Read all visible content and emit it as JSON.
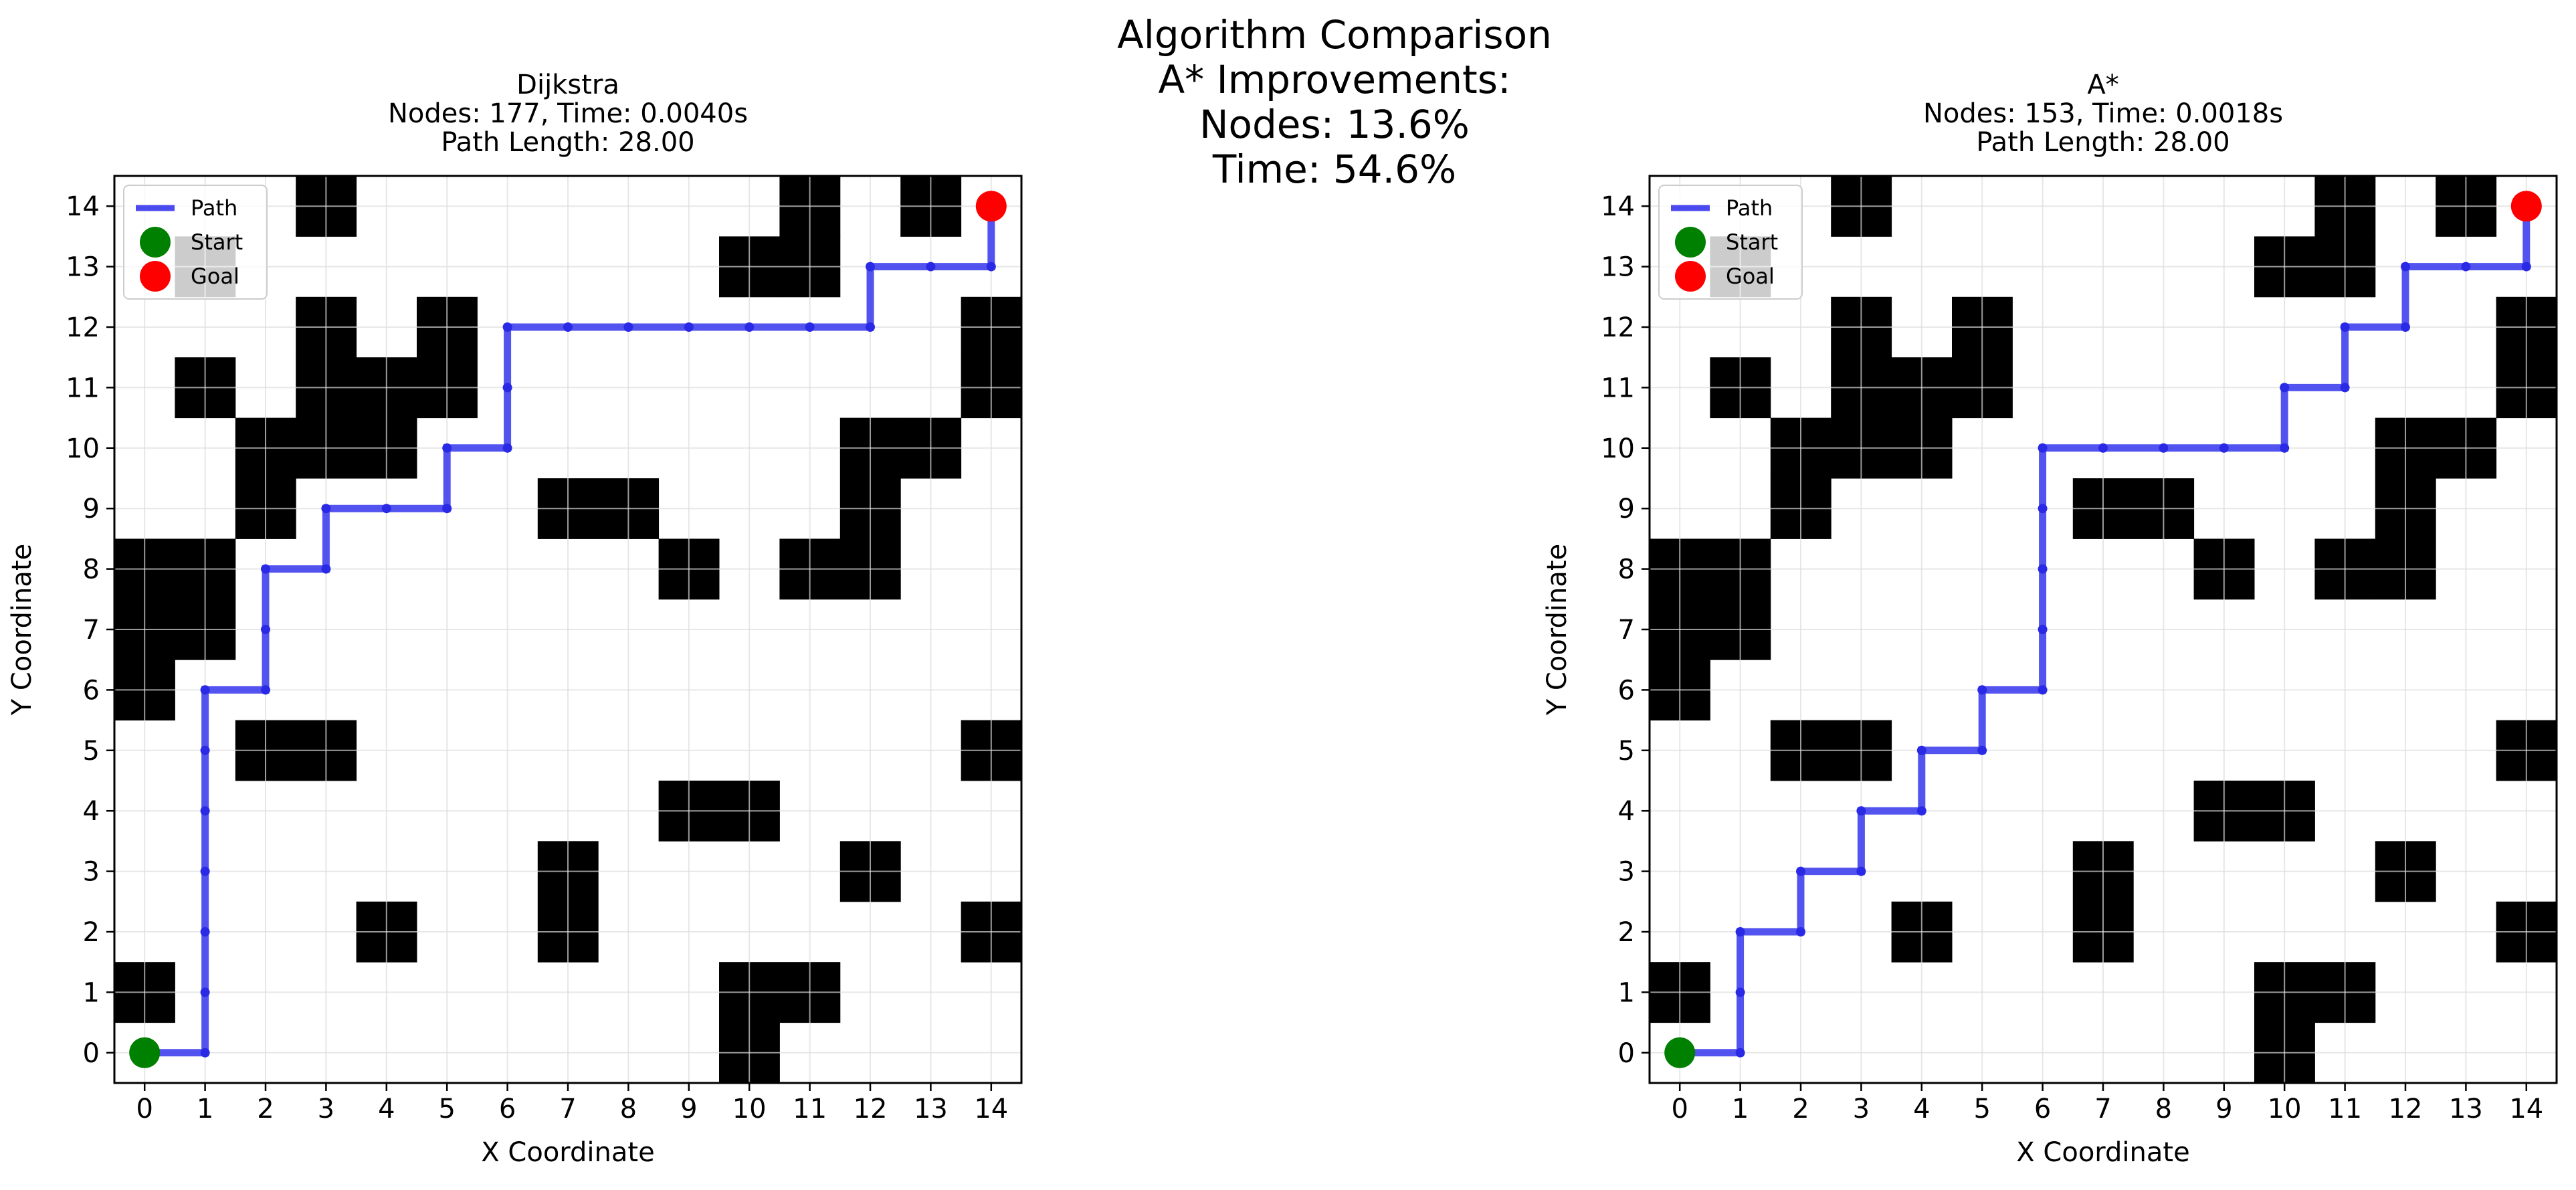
{
  "figure": {
    "title_lines": [
      "Algorithm Comparison",
      "A* Improvements:",
      "Nodes: 13.6%",
      "Time: 54.6%"
    ]
  },
  "colors": {
    "obstacle": "#000000",
    "grid": "#dddddd",
    "path": "#4a4aee",
    "start": "#008000",
    "goal": "#ff0000",
    "legend_border": "#cccccc"
  },
  "chart_data": [
    {
      "type": "grid-path",
      "title_lines": [
        "Dijkstra",
        "Nodes: 177, Time: 0.0040s",
        "Path Length: 28.00"
      ],
      "xlabel": "X Coordinate",
      "ylabel": "Y Coordinate",
      "xlim": [
        -0.5,
        14.5
      ],
      "ylim": [
        -0.5,
        14.5
      ],
      "xticks": [
        "0",
        "1",
        "2",
        "3",
        "4",
        "5",
        "6",
        "7",
        "8",
        "9",
        "10",
        "11",
        "12",
        "13",
        "14"
      ],
      "yticks": [
        "0",
        "1",
        "2",
        "3",
        "4",
        "5",
        "6",
        "7",
        "8",
        "9",
        "10",
        "11",
        "12",
        "13",
        "14"
      ],
      "grid": true,
      "legend": {
        "placement": "top-left",
        "entries": [
          "Path",
          "Start",
          "Goal"
        ]
      },
      "start": [
        0,
        0
      ],
      "goal": [
        14,
        14
      ],
      "obstacles": [
        [
          10,
          0
        ],
        [
          0,
          1
        ],
        [
          10,
          1
        ],
        [
          11,
          1
        ],
        [
          4,
          2
        ],
        [
          7,
          2
        ],
        [
          14,
          2
        ],
        [
          7,
          3
        ],
        [
          12,
          3
        ],
        [
          9,
          4
        ],
        [
          10,
          4
        ],
        [
          2,
          5
        ],
        [
          3,
          5
        ],
        [
          14,
          5
        ],
        [
          0,
          6
        ],
        [
          0,
          7
        ],
        [
          1,
          7
        ],
        [
          0,
          8
        ],
        [
          1,
          8
        ],
        [
          9,
          8
        ],
        [
          11,
          8
        ],
        [
          12,
          8
        ],
        [
          2,
          9
        ],
        [
          7,
          9
        ],
        [
          8,
          9
        ],
        [
          12,
          9
        ],
        [
          2,
          10
        ],
        [
          3,
          10
        ],
        [
          4,
          10
        ],
        [
          12,
          10
        ],
        [
          13,
          10
        ],
        [
          1,
          11
        ],
        [
          3,
          11
        ],
        [
          4,
          11
        ],
        [
          5,
          11
        ],
        [
          14,
          11
        ],
        [
          3,
          12
        ],
        [
          5,
          12
        ],
        [
          14,
          12
        ],
        [
          10,
          13
        ],
        [
          11,
          13
        ],
        [
          1,
          13
        ],
        [
          3,
          14
        ],
        [
          11,
          14
        ],
        [
          13,
          14
        ]
      ],
      "path": [
        [
          0,
          0
        ],
        [
          1,
          0
        ],
        [
          1,
          1
        ],
        [
          1,
          2
        ],
        [
          1,
          3
        ],
        [
          1,
          4
        ],
        [
          1,
          5
        ],
        [
          1,
          6
        ],
        [
          2,
          6
        ],
        [
          2,
          7
        ],
        [
          2,
          8
        ],
        [
          3,
          8
        ],
        [
          3,
          9
        ],
        [
          4,
          9
        ],
        [
          5,
          9
        ],
        [
          5,
          10
        ],
        [
          6,
          10
        ],
        [
          6,
          11
        ],
        [
          6,
          12
        ],
        [
          7,
          12
        ],
        [
          8,
          12
        ],
        [
          9,
          12
        ],
        [
          10,
          12
        ],
        [
          11,
          12
        ],
        [
          12,
          12
        ],
        [
          12,
          13
        ],
        [
          13,
          13
        ],
        [
          14,
          13
        ],
        [
          14,
          14
        ]
      ]
    },
    {
      "type": "grid-path",
      "title_lines": [
        "A*",
        "Nodes: 153, Time: 0.0018s",
        "Path Length: 28.00"
      ],
      "xlabel": "X Coordinate",
      "ylabel": "Y Coordinate",
      "xlim": [
        -0.5,
        14.5
      ],
      "ylim": [
        -0.5,
        14.5
      ],
      "xticks": [
        "0",
        "1",
        "2",
        "3",
        "4",
        "5",
        "6",
        "7",
        "8",
        "9",
        "10",
        "11",
        "12",
        "13",
        "14"
      ],
      "yticks": [
        "0",
        "1",
        "2",
        "3",
        "4",
        "5",
        "6",
        "7",
        "8",
        "9",
        "10",
        "11",
        "12",
        "13",
        "14"
      ],
      "grid": true,
      "legend": {
        "placement": "top-left",
        "entries": [
          "Path",
          "Start",
          "Goal"
        ]
      },
      "start": [
        0,
        0
      ],
      "goal": [
        14,
        14
      ],
      "obstacles": [
        [
          10,
          0
        ],
        [
          0,
          1
        ],
        [
          10,
          1
        ],
        [
          11,
          1
        ],
        [
          4,
          2
        ],
        [
          7,
          2
        ],
        [
          14,
          2
        ],
        [
          7,
          3
        ],
        [
          12,
          3
        ],
        [
          9,
          4
        ],
        [
          10,
          4
        ],
        [
          2,
          5
        ],
        [
          3,
          5
        ],
        [
          14,
          5
        ],
        [
          0,
          6
        ],
        [
          0,
          7
        ],
        [
          1,
          7
        ],
        [
          0,
          8
        ],
        [
          1,
          8
        ],
        [
          9,
          8
        ],
        [
          11,
          8
        ],
        [
          12,
          8
        ],
        [
          2,
          9
        ],
        [
          7,
          9
        ],
        [
          8,
          9
        ],
        [
          12,
          9
        ],
        [
          2,
          10
        ],
        [
          3,
          10
        ],
        [
          4,
          10
        ],
        [
          12,
          10
        ],
        [
          13,
          10
        ],
        [
          1,
          11
        ],
        [
          3,
          11
        ],
        [
          4,
          11
        ],
        [
          5,
          11
        ],
        [
          14,
          11
        ],
        [
          3,
          12
        ],
        [
          5,
          12
        ],
        [
          14,
          12
        ],
        [
          10,
          13
        ],
        [
          11,
          13
        ],
        [
          1,
          13
        ],
        [
          3,
          14
        ],
        [
          11,
          14
        ],
        [
          13,
          14
        ]
      ],
      "path": [
        [
          0,
          0
        ],
        [
          1,
          0
        ],
        [
          1,
          1
        ],
        [
          1,
          2
        ],
        [
          2,
          2
        ],
        [
          2,
          3
        ],
        [
          3,
          3
        ],
        [
          3,
          4
        ],
        [
          4,
          4
        ],
        [
          4,
          5
        ],
        [
          5,
          5
        ],
        [
          5,
          6
        ],
        [
          6,
          6
        ],
        [
          6,
          7
        ],
        [
          6,
          8
        ],
        [
          6,
          9
        ],
        [
          6,
          10
        ],
        [
          7,
          10
        ],
        [
          8,
          10
        ],
        [
          9,
          10
        ],
        [
          10,
          10
        ],
        [
          10,
          11
        ],
        [
          11,
          11
        ],
        [
          11,
          12
        ],
        [
          12,
          12
        ],
        [
          12,
          13
        ],
        [
          13,
          13
        ],
        [
          14,
          13
        ],
        [
          14,
          14
        ]
      ]
    }
  ]
}
